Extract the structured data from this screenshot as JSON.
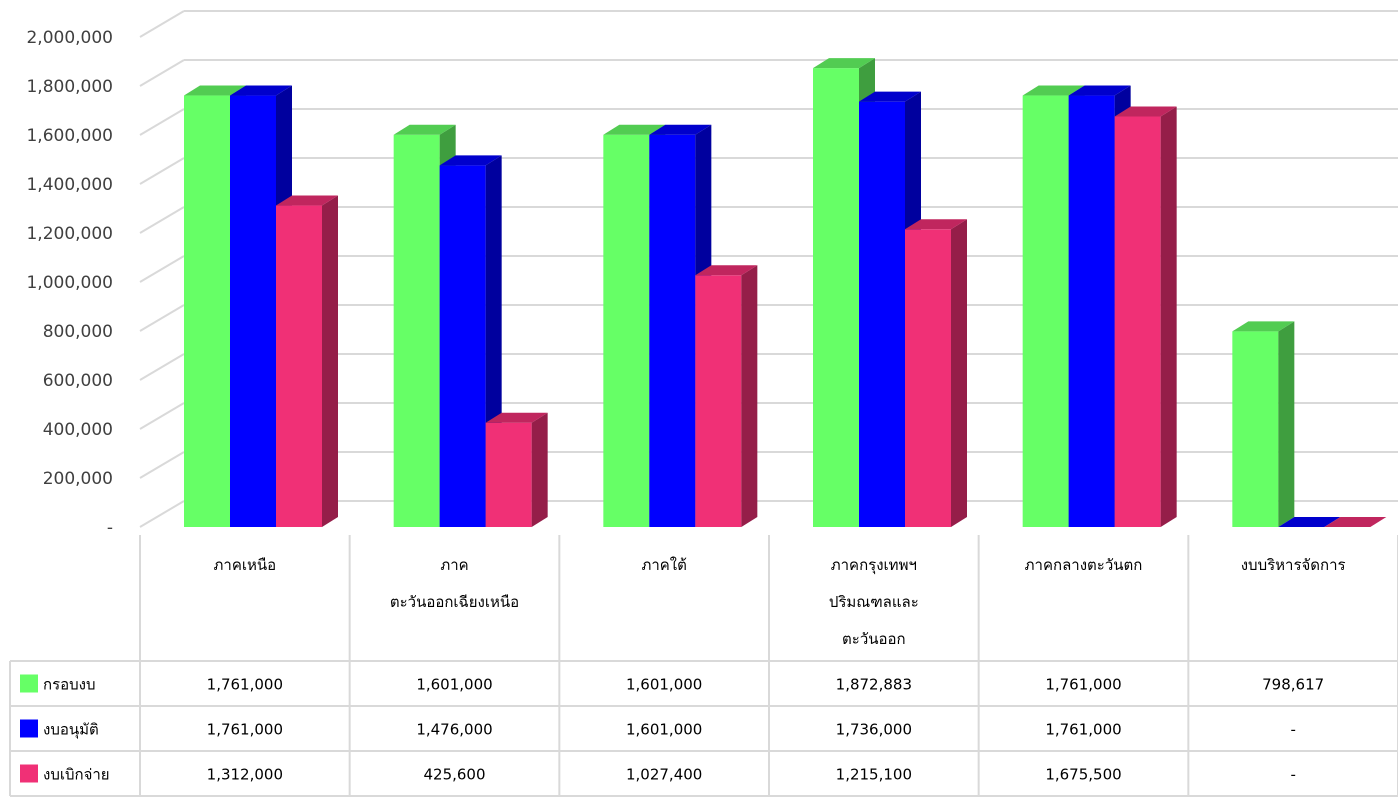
{
  "chart_data": {
    "type": "bar",
    "title": "",
    "xlabel": "",
    "ylabel": "",
    "ylim": [
      0,
      2000000
    ],
    "y_ticks": [
      0,
      200000,
      400000,
      600000,
      800000,
      1000000,
      1200000,
      1400000,
      1600000,
      1800000,
      2000000
    ],
    "y_tick_labels": [
      "-",
      "200,000",
      "400,000",
      "600,000",
      "800,000",
      "1,000,000",
      "1,200,000",
      "1,400,000",
      "1,600,000",
      "1,800,000",
      "2,000,000"
    ],
    "grid": true,
    "three_d": true,
    "legend_placement": "data-table-left",
    "categories": [
      [
        "ภาคเหนือ"
      ],
      [
        "ภาค",
        "ตะวันออกเฉียงเหนือ"
      ],
      [
        "ภาคใต้"
      ],
      [
        "ภาคกรุงเทพฯ",
        "ปริมณฑลและ",
        "ตะวันออก"
      ],
      [
        "ภาคกลางตะวันตก"
      ],
      [
        "งบบริหารจัดการ"
      ]
    ],
    "series": [
      {
        "name": "กรอบงบ",
        "color": "#66ff66",
        "values": [
          1761000,
          1601000,
          1601000,
          1872883,
          1761000,
          798617
        ],
        "table_values": [
          "1,761,000",
          "1,601,000",
          "1,601,000",
          "1,872,883",
          "1,761,000",
          "798,617"
        ]
      },
      {
        "name": "งบอนุมัติ",
        "color": "#0000ff",
        "values": [
          1761000,
          1476000,
          1601000,
          1736000,
          1761000,
          0
        ],
        "table_values": [
          "1,761,000",
          "1,476,000",
          "1,601,000",
          "1,736,000",
          "1,761,000",
          "-"
        ]
      },
      {
        "name": "งบเบิกจ่าย",
        "color": "#f03076",
        "values": [
          1312000,
          425600,
          1027400,
          1215100,
          1675500,
          0
        ],
        "table_values": [
          "1,312,000",
          "425,600",
          "1,027,400",
          "1,215,100",
          "1,675,500",
          "-"
        ]
      }
    ]
  }
}
